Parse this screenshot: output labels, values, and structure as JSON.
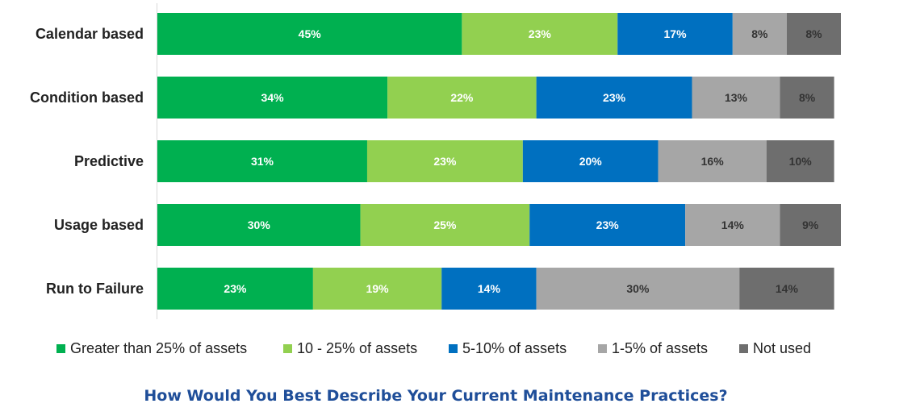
{
  "chart_data": {
    "type": "bar",
    "orientation": "horizontal",
    "stacked": true,
    "value_format": "percent",
    "title": "How Would You Best Describe Your Current Maintenance Practices?",
    "categories": [
      "Calendar based",
      "Condition based",
      "Predictive",
      "Usage based",
      "Run to Failure"
    ],
    "series": [
      {
        "name": "Greater than 25% of assets",
        "color": "#00b050",
        "label_color": "#ffffff",
        "values": [
          45,
          34,
          31,
          30,
          23
        ]
      },
      {
        "name": "10 - 25% of assets",
        "color": "#92d050",
        "label_color": "#ffffff",
        "values": [
          23,
          22,
          23,
          25,
          19
        ]
      },
      {
        "name": "5-10% of assets",
        "color": "#0070c0",
        "label_color": "#ffffff",
        "values": [
          17,
          23,
          20,
          23,
          14
        ]
      },
      {
        "name": "1-5% of assets",
        "color": "#a6a6a6",
        "label_color": "#333333",
        "values": [
          8,
          13,
          16,
          14,
          30
        ]
      },
      {
        "name": "Not used",
        "color": "#6e6e6e",
        "label_color": "#333333",
        "values": [
          8,
          8,
          10,
          9,
          14
        ]
      }
    ],
    "xlim": [
      0,
      101
    ],
    "grid": false,
    "legend_position": "bottom"
  }
}
